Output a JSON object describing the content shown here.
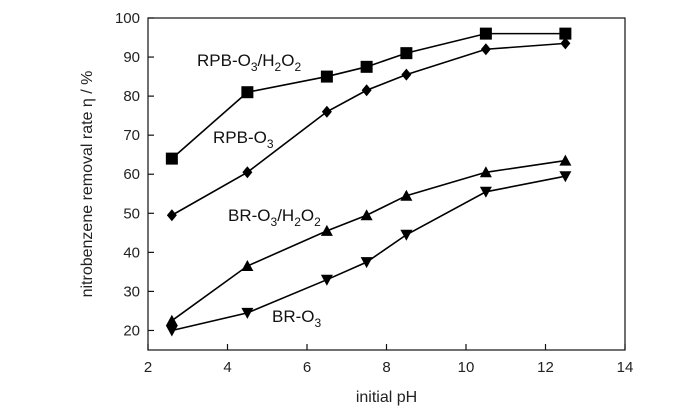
{
  "chart_data": {
    "type": "line",
    "title": "",
    "xlabel": "initial pH",
    "ylabel": "nitrobenzene removal rate η / %",
    "xlim": [
      2,
      14
    ],
    "ylim": [
      15,
      100
    ],
    "xticks": [
      2,
      4,
      6,
      8,
      10,
      12,
      14
    ],
    "yticks": [
      20,
      30,
      40,
      50,
      60,
      70,
      80,
      90,
      100
    ],
    "grid": false,
    "legend": "none (series labelled directly on plot)",
    "series": [
      {
        "name": "RPB-O3/H2O2",
        "marker": "square",
        "x": [
          2.6,
          4.5,
          6.5,
          7.5,
          8.5,
          10.5,
          12.5
        ],
        "y": [
          64,
          81,
          85,
          87.5,
          91,
          96,
          96
        ]
      },
      {
        "name": "RPB-O3",
        "marker": "diamond",
        "x": [
          2.6,
          4.5,
          6.5,
          7.5,
          8.5,
          10.5,
          12.5
        ],
        "y": [
          49.5,
          60.5,
          76,
          81.5,
          85.5,
          92,
          93.5
        ]
      },
      {
        "name": "BR-O3/H2O2",
        "marker": "triangle-up",
        "x": [
          2.6,
          4.5,
          6.5,
          7.5,
          8.5,
          10.5,
          12.5
        ],
        "y": [
          22.5,
          36.5,
          45.5,
          49.5,
          54.5,
          60.5,
          63.5
        ]
      },
      {
        "name": "BR-O3",
        "marker": "triangle-down",
        "x": [
          2.6,
          4.5,
          6.5,
          7.5,
          8.5,
          10.5,
          12.5
        ],
        "y": [
          20,
          24.5,
          33,
          37.5,
          44.5,
          55.5,
          59.5
        ]
      }
    ],
    "annotations": [
      {
        "series": 0,
        "base": "RPB-O",
        "sub1": "3",
        "mid": "/H",
        "sub2": "2",
        "tail": "O",
        "sub3": "2"
      },
      {
        "series": 1,
        "base": "RPB-O",
        "sub1": "3"
      },
      {
        "series": 2,
        "base": "BR-O",
        "sub1": "3",
        "mid": "/H",
        "sub2": "2",
        "tail": "O",
        "sub3": "2"
      },
      {
        "series": 3,
        "base": "BR-O",
        "sub1": "3"
      }
    ]
  }
}
